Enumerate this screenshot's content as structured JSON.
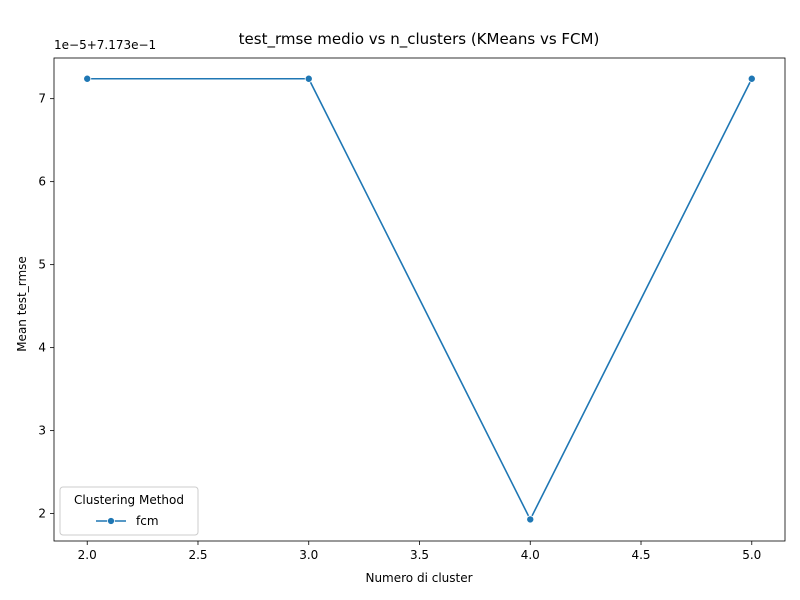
{
  "chart_data": {
    "type": "line",
    "title": "test_rmse medio vs n_clusters (KMeans vs FCM)",
    "xlabel": "Numero di cluster",
    "ylabel": "Mean test_rmse",
    "y_offset_text": "1e−5+7.173e−1",
    "x_ticks": [
      2.0,
      2.5,
      3.0,
      3.5,
      4.0,
      4.5,
      5.0
    ],
    "x_tick_labels": [
      "2.0",
      "2.5",
      "3.0",
      "3.5",
      "4.0",
      "4.5",
      "5.0"
    ],
    "y_ticks": [
      2,
      3,
      4,
      5,
      6,
      7
    ],
    "y_tick_labels": [
      "2",
      "3",
      "4",
      "5",
      "6",
      "7"
    ],
    "xlim": [
      1.85,
      5.15
    ],
    "ylim": [
      1.67,
      7.49
    ],
    "grid": false,
    "legend": {
      "title": "Clustering Method",
      "placement": "lower-left"
    },
    "series": [
      {
        "name": "fcm",
        "color": "#1f77b4",
        "marker": "circle",
        "x": [
          2,
          3,
          4,
          5
        ],
        "y": [
          7.24,
          7.24,
          1.93,
          7.24
        ]
      }
    ]
  }
}
